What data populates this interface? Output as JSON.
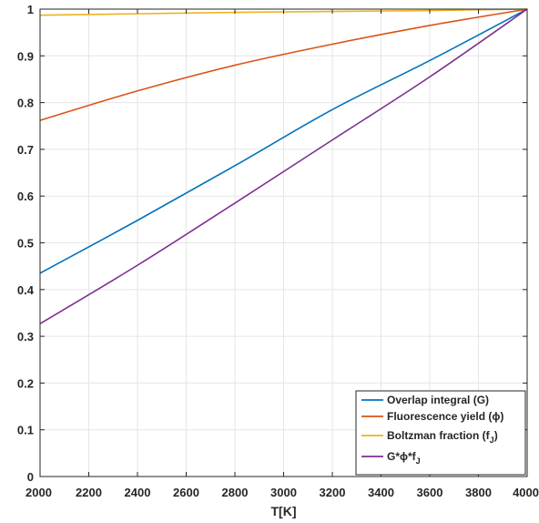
{
  "chart_data": {
    "type": "line",
    "title": "",
    "xlabel": "T[K]",
    "ylabel": "",
    "xlim": [
      2000,
      4000
    ],
    "ylim": [
      0,
      1
    ],
    "xticks": [
      2000,
      2200,
      2400,
      2600,
      2800,
      3000,
      3200,
      3400,
      3600,
      3800,
      4000
    ],
    "yticks": [
      0,
      0.1,
      0.2,
      0.3,
      0.4,
      0.5,
      0.6,
      0.7,
      0.8,
      0.9,
      1
    ],
    "xtick_labels": [
      "2000",
      "2200",
      "2400",
      "2600",
      "2800",
      "3000",
      "3200",
      "3400",
      "3600",
      "3800",
      "4000"
    ],
    "ytick_labels": [
      "0",
      "0.1",
      "0.2",
      "0.3",
      "0.4",
      "0.5",
      "0.6",
      "0.7",
      "0.8",
      "0.9",
      "1"
    ],
    "grid": true,
    "legend_position": "bottom-right",
    "series": [
      {
        "name": "Overlap integral (G)",
        "legend_main": "Overlap integral (G)",
        "legend_sub": "",
        "legend_tail": "",
        "color": "#0072BD",
        "x": [
          2000,
          2400,
          2800,
          3200,
          3600,
          4000
        ],
        "y": [
          0.435,
          0.548,
          0.665,
          0.785,
          0.89,
          1.0
        ]
      },
      {
        "name": "Fluorescence yield (ϕ)",
        "legend_main": "Fluorescence yield (ϕ)",
        "legend_sub": "",
        "legend_tail": "",
        "color": "#D95319",
        "x": [
          2000,
          2400,
          2800,
          3200,
          3600,
          4000
        ],
        "y": [
          0.762,
          0.825,
          0.88,
          0.925,
          0.965,
          1.0
        ]
      },
      {
        "name": "Boltzman fraction (fJ)",
        "legend_main": "Boltzman fraction (f",
        "legend_sub": "J",
        "legend_tail": ")",
        "color": "#EDB120",
        "x": [
          2000,
          2400,
          2800,
          3200,
          3600,
          4000
        ],
        "y": [
          0.987,
          0.99,
          0.993,
          0.995,
          0.997,
          1.0
        ]
      },
      {
        "name": "G*ϕ*fJ",
        "legend_main": "G*ϕ*f",
        "legend_sub": "J",
        "legend_tail": "",
        "color": "#7E2F8E",
        "x": [
          2000,
          2400,
          2800,
          3200,
          3600,
          4000
        ],
        "y": [
          0.327,
          0.452,
          0.585,
          0.72,
          0.855,
          1.0
        ]
      }
    ]
  }
}
